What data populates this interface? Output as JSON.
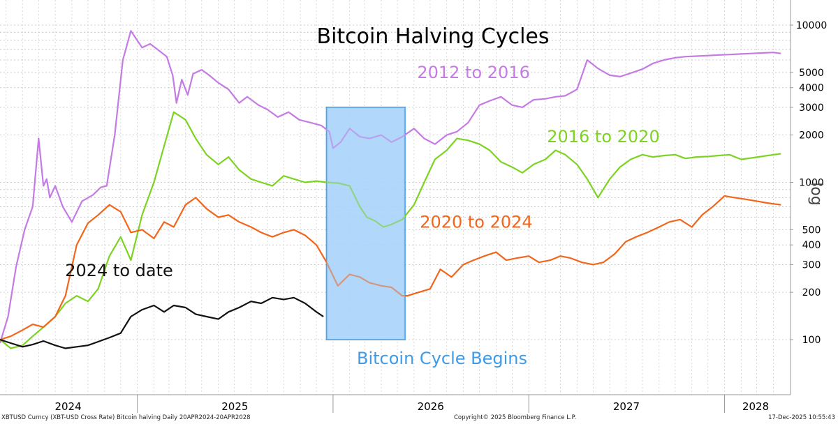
{
  "chart_data": {
    "type": "line",
    "title": "Bitcoin Halving Cycles",
    "xlabel": "",
    "ylabel": "log",
    "y_scale": "log",
    "ylim": [
      50,
      12000
    ],
    "xlim": [
      "2024-04-20",
      "2028-04-20"
    ],
    "y_ticks": [
      100,
      200,
      300,
      400,
      500,
      1000,
      2000,
      3000,
      4000,
      5000,
      10000
    ],
    "x_year_labels": [
      {
        "label": "2024",
        "mid": "2024-08-25"
      },
      {
        "label": "2025",
        "mid": "2025-07-02"
      },
      {
        "label": "2026",
        "mid": "2026-07-02"
      },
      {
        "label": "2027",
        "mid": "2027-07-02"
      },
      {
        "label": "2028",
        "mid": "2028-02-28"
      }
    ],
    "x_year_boundaries": [
      "2025-01-01",
      "2026-01-01",
      "2027-01-01",
      "2028-01-01"
    ],
    "grid": true,
    "legend": "inline labels",
    "highlight": {
      "label": "Bitcoin Cycle Begins",
      "start": "2025-12-20",
      "end": "2026-05-15",
      "y_range": [
        100,
        3000
      ],
      "color": "#3d9be9"
    },
    "series": [
      {
        "name": "2012 to 2016",
        "color": "#c47be3",
        "x": [
          "2024-04-20",
          "2024-05-05",
          "2024-05-20",
          "2024-06-05",
          "2024-06-20",
          "2024-07-01",
          "2024-07-10",
          "2024-07-16",
          "2024-07-22",
          "2024-08-01",
          "2024-08-15",
          "2024-09-01",
          "2024-09-20",
          "2024-10-10",
          "2024-10-25",
          "2024-11-05",
          "2024-11-20",
          "2024-12-05",
          "2024-12-20",
          "2025-01-10",
          "2025-01-25",
          "2025-02-10",
          "2025-02-25",
          "2025-03-08",
          "2025-03-15",
          "2025-03-25",
          "2025-04-05",
          "2025-04-15",
          "2025-05-01",
          "2025-05-15",
          "2025-06-01",
          "2025-06-20",
          "2025-07-10",
          "2025-07-25",
          "2025-08-15",
          "2025-09-01",
          "2025-09-20",
          "2025-10-10",
          "2025-10-30",
          "2025-11-20",
          "2025-12-10",
          "2025-12-25",
          "2026-01-01",
          "2026-01-15",
          "2026-02-01",
          "2026-02-20",
          "2026-03-10",
          "2026-04-01",
          "2026-04-20",
          "2026-05-10",
          "2026-06-01",
          "2026-06-20",
          "2026-07-10",
          "2026-08-01",
          "2026-08-20",
          "2026-09-10",
          "2026-10-01",
          "2026-10-20",
          "2026-11-10",
          "2026-12-01",
          "2026-12-20",
          "2027-01-10",
          "2027-02-01",
          "2027-02-20",
          "2027-03-10",
          "2027-04-01",
          "2027-04-20",
          "2027-05-10",
          "2027-06-01",
          "2027-06-20",
          "2027-07-10",
          "2027-08-01",
          "2027-08-20",
          "2027-09-10",
          "2027-10-01",
          "2027-10-20",
          "2027-11-10",
          "2027-12-01",
          "2027-12-20",
          "2028-01-10",
          "2028-02-01",
          "2028-02-20",
          "2028-03-10",
          "2028-04-01",
          "2028-04-15"
        ],
        "values": [
          95,
          140,
          290,
          500,
          700,
          1900,
          950,
          1050,
          800,
          950,
          700,
          560,
          760,
          830,
          930,
          950,
          2000,
          6000,
          9200,
          7200,
          7600,
          6900,
          6300,
          4800,
          3200,
          4500,
          3600,
          4900,
          5200,
          4800,
          4300,
          3900,
          3200,
          3500,
          3100,
          2900,
          2600,
          2800,
          2500,
          2400,
          2300,
          2100,
          1650,
          1800,
          2200,
          1950,
          1900,
          2000,
          1800,
          1950,
          2200,
          1900,
          1750,
          2000,
          2100,
          2400,
          3100,
          3300,
          3500,
          3100,
          3000,
          3350,
          3400,
          3500,
          3550,
          3900,
          6000,
          5300,
          4800,
          4700,
          4950,
          5250,
          5700,
          6000,
          6200,
          6300,
          6350,
          6400,
          6450,
          6500,
          6550,
          6600,
          6650,
          6700,
          6600
        ]
      },
      {
        "name": "2016 to 2020",
        "color": "#7dd321",
        "x": [
          "2024-04-20",
          "2024-05-10",
          "2024-06-01",
          "2024-06-20",
          "2024-07-10",
          "2024-08-01",
          "2024-08-20",
          "2024-09-10",
          "2024-10-01",
          "2024-10-20",
          "2024-11-10",
          "2024-12-01",
          "2024-12-20",
          "2025-01-10",
          "2025-02-01",
          "2025-02-20",
          "2025-03-10",
          "2025-04-01",
          "2025-04-20",
          "2025-05-10",
          "2025-06-01",
          "2025-06-20",
          "2025-07-10",
          "2025-08-01",
          "2025-08-20",
          "2025-09-10",
          "2025-10-01",
          "2025-10-20",
          "2025-11-10",
          "2025-12-01",
          "2025-12-20",
          "2026-01-10",
          "2026-02-01",
          "2026-02-20",
          "2026-03-05",
          "2026-03-20",
          "2026-04-05",
          "2026-04-20",
          "2026-05-10",
          "2026-06-01",
          "2026-06-20",
          "2026-07-10",
          "2026-08-01",
          "2026-08-20",
          "2026-09-10",
          "2026-10-01",
          "2026-10-20",
          "2026-11-10",
          "2026-12-01",
          "2026-12-20",
          "2027-01-10",
          "2027-02-01",
          "2027-02-20",
          "2027-03-10",
          "2027-04-01",
          "2027-04-20",
          "2027-05-10",
          "2027-06-01",
          "2027-06-20",
          "2027-07-10",
          "2027-08-01",
          "2027-08-20",
          "2027-09-10",
          "2027-10-01",
          "2027-10-20",
          "2027-11-10",
          "2027-12-01",
          "2027-12-20",
          "2028-01-10",
          "2028-02-01",
          "2028-02-20",
          "2028-03-10",
          "2028-04-01",
          "2028-04-15"
        ],
        "values": [
          100,
          88,
          92,
          105,
          120,
          140,
          170,
          190,
          175,
          210,
          340,
          450,
          320,
          620,
          1000,
          1700,
          2800,
          2500,
          1900,
          1500,
          1300,
          1450,
          1200,
          1050,
          1000,
          950,
          1100,
          1050,
          1000,
          1020,
          1000,
          990,
          950,
          700,
          600,
          570,
          520,
          540,
          580,
          720,
          1000,
          1400,
          1600,
          1900,
          1850,
          1750,
          1600,
          1350,
          1250,
          1150,
          1300,
          1400,
          1600,
          1500,
          1300,
          1050,
          800,
          1050,
          1250,
          1400,
          1500,
          1450,
          1480,
          1500,
          1420,
          1450,
          1460,
          1480,
          1500,
          1400,
          1430,
          1460,
          1500,
          1520
        ]
      },
      {
        "name": "2020 to 2024",
        "color": "#f2661b",
        "x": [
          "2024-04-20",
          "2024-05-10",
          "2024-06-01",
          "2024-06-20",
          "2024-07-10",
          "2024-08-01",
          "2024-08-20",
          "2024-09-10",
          "2024-10-01",
          "2024-10-20",
          "2024-11-10",
          "2024-12-01",
          "2024-12-20",
          "2025-01-10",
          "2025-02-01",
          "2025-02-20",
          "2025-03-10",
          "2025-04-01",
          "2025-04-20",
          "2025-05-10",
          "2025-06-01",
          "2025-06-20",
          "2025-07-10",
          "2025-08-01",
          "2025-08-20",
          "2025-09-10",
          "2025-10-01",
          "2025-10-20",
          "2025-11-10",
          "2025-12-01",
          "2025-12-20",
          "2026-01-10",
          "2026-02-01",
          "2026-02-20",
          "2026-03-10",
          "2026-04-01",
          "2026-04-20",
          "2026-05-10",
          "2026-05-20",
          "2026-06-10",
          "2026-07-01",
          "2026-07-20",
          "2026-08-10",
          "2026-09-01",
          "2026-09-20",
          "2026-10-10",
          "2026-11-01",
          "2026-11-20",
          "2026-12-10",
          "2027-01-01",
          "2027-01-20",
          "2027-02-10",
          "2027-03-01",
          "2027-03-20",
          "2027-04-10",
          "2027-05-01",
          "2027-05-20",
          "2027-06-10",
          "2027-07-01",
          "2027-07-20",
          "2027-08-10",
          "2027-09-01",
          "2027-09-20",
          "2027-10-10",
          "2027-11-01",
          "2027-11-20",
          "2027-12-10",
          "2028-01-01",
          "2028-01-20",
          "2028-02-10",
          "2028-03-01",
          "2028-03-20",
          "2028-04-15"
        ],
        "values": [
          100,
          105,
          115,
          125,
          120,
          140,
          190,
          400,
          550,
          620,
          720,
          650,
          480,
          500,
          440,
          560,
          520,
          720,
          800,
          680,
          600,
          620,
          560,
          520,
          480,
          450,
          480,
          500,
          460,
          400,
          310,
          220,
          260,
          250,
          230,
          220,
          215,
          190,
          190,
          200,
          210,
          280,
          250,
          300,
          320,
          340,
          360,
          320,
          330,
          340,
          310,
          320,
          340,
          330,
          310,
          300,
          310,
          350,
          420,
          450,
          480,
          520,
          560,
          580,
          520,
          620,
          700,
          820,
          800,
          780,
          760,
          740,
          720
        ]
      },
      {
        "name": "2024 to date",
        "color": "#111111",
        "x": [
          "2024-04-20",
          "2024-05-10",
          "2024-06-01",
          "2024-06-20",
          "2024-07-10",
          "2024-08-01",
          "2024-08-20",
          "2024-09-10",
          "2024-10-01",
          "2024-10-20",
          "2024-11-10",
          "2024-12-01",
          "2024-12-20",
          "2025-01-10",
          "2025-02-01",
          "2025-02-20",
          "2025-03-10",
          "2025-04-01",
          "2025-04-20",
          "2025-05-10",
          "2025-06-01",
          "2025-06-20",
          "2025-07-10",
          "2025-08-01",
          "2025-08-20",
          "2025-09-10",
          "2025-10-01",
          "2025-10-20",
          "2025-11-10",
          "2025-12-01",
          "2025-12-14"
        ],
        "values": [
          100,
          95,
          90,
          93,
          98,
          92,
          88,
          90,
          92,
          97,
          103,
          110,
          140,
          155,
          165,
          150,
          165,
          160,
          145,
          140,
          135,
          150,
          160,
          175,
          170,
          185,
          180,
          185,
          170,
          150,
          140
        ]
      }
    ],
    "annotations": [
      {
        "text": "2012 to 2016",
        "date": "2026-09-20",
        "value": 5000,
        "color": "#c47be3"
      },
      {
        "text": "2016 to 2020",
        "date": "2027-05-20",
        "value": 1950,
        "color": "#7dd321"
      },
      {
        "text": "2020 to 2024",
        "date": "2026-09-25",
        "value": 560,
        "color": "#f2661b"
      },
      {
        "text": "2024 to date",
        "date": "2024-11-28",
        "value": 275,
        "color": "#111111"
      }
    ]
  },
  "footer": {
    "source": "XBTUSD Curncy (XBT-USD Cross Rate) Bitcoin halving Daily 20APR2024-20APR2028",
    "copyright": "Copyright© 2025 Bloomberg Finance L.P.",
    "timestamp": "17-Dec-2025 10:55:43"
  }
}
